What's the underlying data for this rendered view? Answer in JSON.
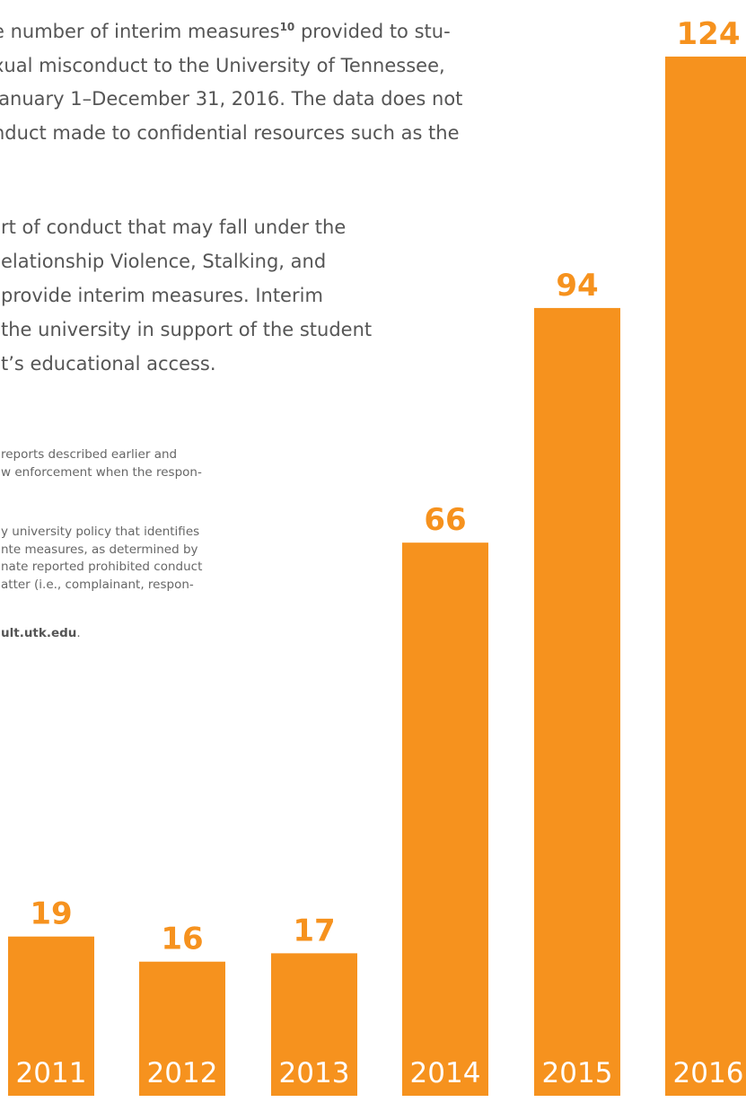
{
  "text": {
    "para1": [
      "e number of interim measures",
      "xual misconduct to the University of Tennessee,",
      "January 1–December 31, 2016. The data does not",
      "nduct made to confidential resources such as the"
    ],
    "para1_sup": "10",
    "para1_suffix": " provided to stu-",
    "para2": [
      "rt of conduct that may fall under the",
      "elationship Violence, Stalking, and",
      "provide interim measures. Interim",
      "the university in support of the student",
      "t’s educational access."
    ],
    "footnote1": [
      "reports described earlier and",
      "w enforcement when the respon-"
    ],
    "footnote2": [
      "y university policy that identifies",
      "nte measures, as determined by",
      "nate reported prohibited conduct",
      "atter (i.e., complainant, respon-"
    ],
    "footnote3_bold": "ult.utk.edu",
    "footnote3_end": "."
  },
  "colors": {
    "bar": "#f6921e",
    "body_text": "#555555",
    "category_text": "#ffffff"
  },
  "chart_data": {
    "type": "bar",
    "categories": [
      "2011",
      "2012",
      "2013",
      "2014",
      "2015",
      "2016"
    ],
    "values": [
      19,
      16,
      17,
      66,
      94,
      124
    ],
    "title": "",
    "xlabel": "",
    "ylabel": "",
    "ylim": [
      0,
      124
    ]
  }
}
